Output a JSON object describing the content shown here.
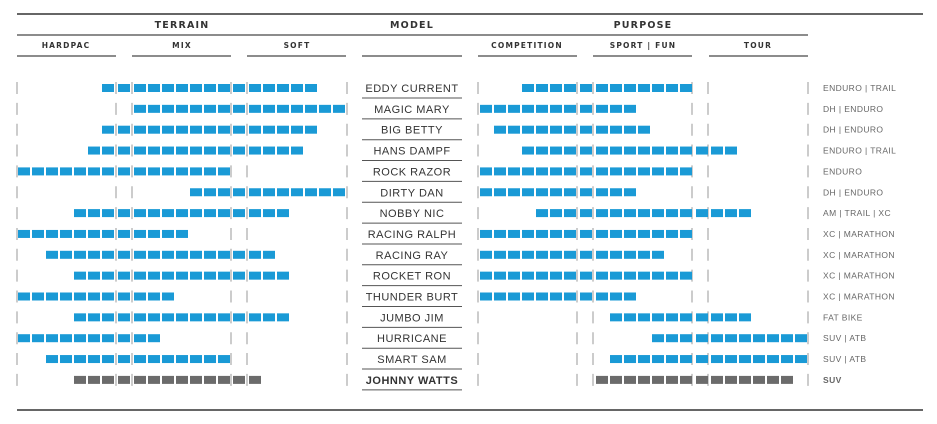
{
  "chart_data": {
    "type": "table",
    "headers": {
      "terrain": "TERRAIN",
      "model": "MODEL",
      "purpose": "PURPOSE",
      "terrain_columns": [
        "HARDPAC",
        "MIX",
        "SOFT"
      ],
      "purpose_columns": [
        "COMPETITION",
        "SPORT | FUN",
        "TOUR"
      ]
    },
    "scale_note_hidden": "",
    "colors": {
      "standard": "#1a9ad6",
      "highlight": "#6b6b6b",
      "rule": "#666666"
    },
    "rows": [
      {
        "model": "EDDY CURRENT",
        "use": "ENDURO | TRAIL",
        "terrain": [
          6,
          20
        ],
        "purpose": [
          3,
          14
        ],
        "highlight": false
      },
      {
        "model": "MAGIC MARY",
        "use": "DH | ENDURO",
        "terrain": [
          8,
          22
        ],
        "purpose": [
          0,
          10
        ],
        "highlight": false
      },
      {
        "model": "BIG BETTY",
        "use": "DH | ENDURO",
        "terrain": [
          6,
          20
        ],
        "purpose": [
          1,
          11
        ],
        "highlight": false
      },
      {
        "model": "HANS DAMPF",
        "use": "ENDURO | TRAIL",
        "terrain": [
          5,
          19
        ],
        "purpose": [
          3,
          17
        ],
        "highlight": false
      },
      {
        "model": "ROCK RAZOR",
        "use": "ENDURO",
        "terrain": [
          0,
          14
        ],
        "purpose": [
          0,
          14
        ],
        "highlight": false
      },
      {
        "model": "DIRTY DAN",
        "use": "DH | ENDURO",
        "terrain": [
          12,
          22
        ],
        "purpose": [
          0,
          10
        ],
        "highlight": false
      },
      {
        "model": "NOBBY NIC",
        "use": "AM | TRAIL | XC",
        "terrain": [
          4,
          18
        ],
        "purpose": [
          4,
          18
        ],
        "highlight": false
      },
      {
        "model": "RACING RALPH",
        "use": "XC | MARATHON",
        "terrain": [
          0,
          11
        ],
        "purpose": [
          0,
          14
        ],
        "highlight": false
      },
      {
        "model": "RACING RAY",
        "use": "XC | MARATHON",
        "terrain": [
          2,
          17
        ],
        "purpose": [
          0,
          12
        ],
        "highlight": false
      },
      {
        "model": "ROCKET RON",
        "use": "XC | MARATHON",
        "terrain": [
          4,
          18
        ],
        "purpose": [
          0,
          14
        ],
        "highlight": false
      },
      {
        "model": "THUNDER BURT",
        "use": "XC | MARATHON",
        "terrain": [
          0,
          10
        ],
        "purpose": [
          0,
          10
        ],
        "highlight": false
      },
      {
        "model": "JUMBO JIM",
        "use": "FAT BIKE",
        "terrain": [
          4,
          18
        ],
        "purpose": [
          9,
          18
        ],
        "highlight": false
      },
      {
        "model": "HURRICANE",
        "use": "SUV | ATB",
        "terrain": [
          0,
          9
        ],
        "purpose": [
          12,
          22
        ],
        "highlight": false
      },
      {
        "model": "SMART SAM",
        "use": "SUV | ATB",
        "terrain": [
          2,
          14
        ],
        "purpose": [
          9,
          22
        ],
        "highlight": false
      },
      {
        "model": "JOHNNY WATTS",
        "use": "SUV",
        "terrain": [
          4,
          16
        ],
        "purpose": [
          8,
          21
        ],
        "highlight": true
      }
    ]
  }
}
